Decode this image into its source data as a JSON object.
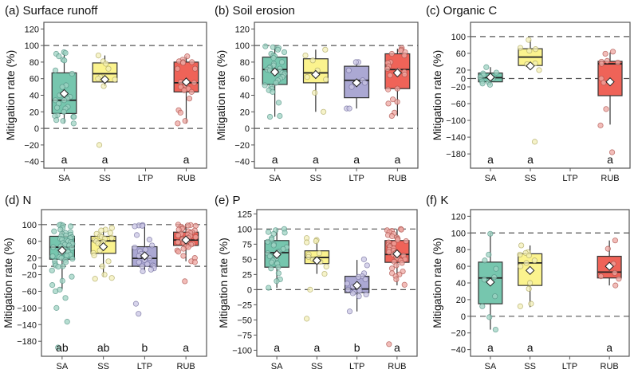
{
  "chart_data": [
    {
      "type": "box",
      "title": "(a) Surface runoff",
      "ylabel": "Mitigation rate (%)",
      "ylim": [
        -48,
        128
      ],
      "yticks": [
        120,
        100,
        80,
        60,
        40,
        20,
        0,
        -20,
        -40
      ],
      "reference_lines": [
        100,
        0
      ],
      "categories": [
        "SA",
        "SS",
        "LTP",
        "RUB"
      ],
      "groups": [
        {
          "name": "SA",
          "letter": "a",
          "q1": 18,
          "median": 34,
          "q3": 67,
          "whisker_low": 6,
          "whisker_high": 92,
          "mean": 42,
          "points": [
            92,
            91,
            90,
            87,
            83,
            82,
            70,
            66,
            52,
            50,
            40,
            38,
            36,
            34,
            34,
            30,
            26,
            25,
            24,
            20,
            16,
            15,
            14,
            14,
            10,
            9,
            6
          ]
        },
        {
          "name": "SS",
          "letter": "a",
          "q1": 56,
          "median": 66,
          "q3": 79,
          "whisker_low": 51,
          "whisker_high": 88,
          "mean": 59,
          "points": [
            88,
            81,
            78,
            72,
            62,
            60,
            59,
            51,
            -20
          ]
        },
        {
          "name": "LTP",
          "letter": "",
          "points": []
        },
        {
          "name": "RUB",
          "letter": "a",
          "q1": 44,
          "median": 55,
          "q3": 80,
          "whisker_low": 6,
          "whisker_high": 87,
          "mean": 56,
          "points": [
            87,
            83,
            81,
            80,
            80,
            79,
            72,
            72,
            56,
            55,
            52,
            50,
            48,
            46,
            44,
            36,
            22,
            19,
            9,
            6
          ]
        }
      ]
    },
    {
      "type": "box",
      "title": "(b) Soil erosion",
      "ylabel": "Mitigation rate (%)",
      "ylim": [
        -48,
        128
      ],
      "yticks": [
        120,
        100,
        80,
        60,
        40,
        20,
        0,
        -20,
        -40
      ],
      "reference_lines": [
        100,
        0
      ],
      "categories": [
        "SA",
        "SS",
        "LTP",
        "RUB"
      ],
      "groups": [
        {
          "name": "SA",
          "letter": "a",
          "q1": 53,
          "median": 71,
          "q3": 86,
          "whisker_low": 14,
          "whisker_high": 100,
          "mean": 68,
          "points": [
            99,
            98,
            97,
            95,
            92,
            90,
            88,
            87,
            85,
            80,
            78,
            76,
            74,
            73,
            72,
            71,
            70,
            68,
            67,
            66,
            64,
            62,
            60,
            58,
            55,
            52,
            50,
            48,
            46,
            44,
            31,
            15,
            14
          ]
        },
        {
          "name": "SS",
          "letter": "a",
          "q1": 55,
          "median": 67,
          "q3": 84,
          "whisker_low": 20,
          "whisker_high": 95,
          "mean": 65,
          "points": [
            95,
            88,
            82,
            70,
            65,
            62,
            59,
            43,
            20
          ]
        },
        {
          "name": "LTP",
          "letter": "a",
          "q1": 37,
          "median": 58,
          "q3": 75,
          "whisker_low": 24,
          "whisker_high": 80,
          "mean": 55,
          "points": [
            80,
            80,
            70,
            58,
            55,
            50,
            24,
            24
          ]
        },
        {
          "name": "RUB",
          "letter": "a",
          "q1": 48,
          "median": 71,
          "q3": 90,
          "whisker_low": 15,
          "whisker_high": 96,
          "mean": 67,
          "points": [
            97,
            95,
            94,
            92,
            90,
            88,
            80,
            79,
            75,
            72,
            70,
            68,
            65,
            64,
            48,
            47,
            35,
            32,
            30,
            19,
            15
          ]
        }
      ]
    },
    {
      "type": "box",
      "title": "(c) Organic C",
      "ylabel": "Mitigation rate (%)",
      "ylim": [
        -214,
        134
      ],
      "yticks": [
        100,
        60,
        20,
        0,
        -20,
        -60,
        -100,
        -140,
        -180
      ],
      "reference_lines": [
        100,
        0
      ],
      "categories": [
        "SA",
        "SS",
        "LTP",
        "RUB"
      ],
      "groups": [
        {
          "name": "SA",
          "letter": "a",
          "q1": -8,
          "median": 2,
          "q3": 13,
          "whisker_low": -15,
          "whisker_high": 27,
          "mean": 3,
          "points": [
            27,
            14,
            12,
            8,
            3,
            0,
            -7,
            -9,
            -12,
            -15
          ]
        },
        {
          "name": "SS",
          "letter": "a",
          "q1": 31,
          "median": 51,
          "q3": 71,
          "whisker_low": 20,
          "whisker_high": 92,
          "mean": 30,
          "points": [
            92,
            73,
            70,
            66,
            36,
            34,
            20,
            -151
          ]
        },
        {
          "name": "LTP",
          "letter": "",
          "points": []
        },
        {
          "name": "RUB",
          "letter": "a",
          "q1": -41,
          "median": 35,
          "q3": 41,
          "whisker_low": -110,
          "whisker_high": 62,
          "mean": -8,
          "points": [
            64,
            59,
            42,
            40,
            38,
            35,
            0,
            -10,
            -73,
            -112,
            -176
          ]
        }
      ]
    },
    {
      "type": "box",
      "title": "(d) N",
      "ylabel": "Mitigation rate (%)",
      "ylim": [
        -216,
        136
      ],
      "yticks": [
        100,
        60,
        20,
        0,
        -20,
        -60,
        -100,
        -140,
        -180
      ],
      "reference_lines": [
        100,
        0
      ],
      "categories": [
        "SA",
        "SS",
        "LTP",
        "RUB"
      ],
      "groups": [
        {
          "name": "SA",
          "letter": "ab",
          "q1": 17,
          "median": 46,
          "q3": 72,
          "whisker_low": -55,
          "whisker_high": 100,
          "mean": 38,
          "points": [
            100,
            99,
            98,
            96,
            92,
            88,
            84,
            82,
            80,
            78,
            76,
            74,
            72,
            70,
            68,
            66,
            64,
            62,
            60,
            58,
            56,
            54,
            52,
            50,
            48,
            46,
            44,
            42,
            40,
            38,
            36,
            34,
            32,
            30,
            28,
            26,
            24,
            22,
            20,
            18,
            15,
            12,
            10,
            6,
            2,
            0,
            -1,
            -10,
            -25,
            -35,
            -45,
            -56,
            -60,
            -76,
            -100,
            -133,
            -195
          ]
        },
        {
          "name": "SS",
          "letter": "ab",
          "q1": 31,
          "median": 61,
          "q3": 72,
          "whisker_low": -25,
          "whisker_high": 92,
          "mean": 47,
          "points": [
            92,
            88,
            86,
            80,
            78,
            72,
            70,
            68,
            66,
            62,
            60,
            58,
            55,
            50,
            46,
            38,
            32,
            26,
            12,
            0,
            -20,
            -28,
            -30
          ]
        },
        {
          "name": "LTP",
          "letter": "b",
          "q1": 0,
          "median": 19,
          "q3": 47,
          "whisker_low": -10,
          "whisker_high": 100,
          "mean": 25,
          "points": [
            99,
            98,
            97,
            96,
            75,
            64,
            50,
            45,
            40,
            36,
            30,
            25,
            20,
            15,
            10,
            5,
            2,
            0,
            0,
            -5,
            -8,
            -12,
            -90,
            -114
          ]
        },
        {
          "name": "RUB",
          "letter": "a",
          "q1": 50,
          "median": 63,
          "q3": 82,
          "whisker_low": 12,
          "whisker_high": 100,
          "mean": 63,
          "points": [
            100,
            99,
            98,
            97,
            95,
            92,
            90,
            88,
            86,
            84,
            82,
            80,
            78,
            76,
            74,
            72,
            70,
            68,
            66,
            64,
            62,
            60,
            58,
            56,
            54,
            52,
            50,
            48,
            46,
            42,
            38,
            35,
            25,
            20,
            12,
            10,
            -36
          ]
        }
      ]
    },
    {
      "type": "box",
      "title": "(e) P",
      "ylabel": "Mitigation rate (%)",
      "ylim": [
        -110,
        132
      ],
      "yticks": [
        125,
        100,
        75,
        50,
        25,
        0,
        -25,
        -50,
        -75,
        -100
      ],
      "reference_lines": [
        100,
        0
      ],
      "categories": [
        "SA",
        "SS",
        "LTP",
        "RUB"
      ],
      "groups": [
        {
          "name": "SA",
          "letter": "a",
          "q1": 37,
          "median": 61,
          "q3": 81,
          "whisker_low": 3,
          "whisker_high": 100,
          "mean": 58,
          "points": [
            100,
            98,
            95,
            94,
            92,
            85,
            83,
            79,
            75,
            73,
            70,
            67,
            63,
            62,
            60,
            57,
            55,
            52,
            48,
            45,
            43,
            37,
            35,
            27,
            17,
            14,
            3
          ]
        },
        {
          "name": "SS",
          "letter": "a",
          "q1": 43,
          "median": 53,
          "q3": 64,
          "whisker_low": 26,
          "whisker_high": 85,
          "mean": 48,
          "points": [
            85,
            82,
            80,
            78,
            60,
            58,
            54,
            50,
            48,
            46,
            38,
            26,
            0,
            -48
          ]
        },
        {
          "name": "LTP",
          "letter": "b",
          "q1": -5,
          "median": 1,
          "q3": 22,
          "whisker_low": -36,
          "whisker_high": 49,
          "mean": 7,
          "points": [
            50,
            40,
            27,
            22,
            21,
            17,
            10,
            5,
            2,
            0,
            -2,
            -4,
            -6,
            -8,
            -11,
            -36
          ]
        },
        {
          "name": "RUB",
          "letter": "a",
          "q1": 45,
          "median": 58,
          "q3": 81,
          "whisker_low": 7,
          "whisker_high": 100,
          "mean": 59,
          "points": [
            100,
            99,
            98,
            97,
            95,
            92,
            90,
            88,
            86,
            84,
            82,
            80,
            78,
            76,
            74,
            72,
            70,
            68,
            66,
            64,
            62,
            60,
            58,
            56,
            54,
            52,
            50,
            48,
            46,
            44,
            40,
            35,
            30,
            27,
            25,
            22,
            17,
            8,
            -90
          ]
        }
      ]
    },
    {
      "type": "box",
      "title": "(f) K",
      "ylabel": "Mitigation rate (%)",
      "ylim": [
        -48,
        128
      ],
      "yticks": [
        120,
        100,
        80,
        60,
        40,
        20,
        0,
        -20,
        -40
      ],
      "reference_lines": [
        100,
        0
      ],
      "categories": [
        "SA",
        "SS",
        "LTP",
        "RUB"
      ],
      "groups": [
        {
          "name": "SA",
          "letter": "a",
          "q1": 15,
          "median": 46,
          "q3": 65,
          "whisker_low": -16,
          "whisker_high": 99,
          "mean": 41,
          "points": [
            99,
            74,
            67,
            57,
            47,
            44,
            24,
            12,
            -1,
            -16
          ]
        },
        {
          "name": "SS",
          "letter": "a",
          "q1": 37,
          "median": 64,
          "q3": 75,
          "whisker_low": 11,
          "whisker_high": 85,
          "mean": 55,
          "points": [
            85,
            77,
            76,
            74,
            73,
            67,
            64,
            60,
            40,
            33,
            15,
            12
          ]
        },
        {
          "name": "LTP",
          "letter": "",
          "points": []
        },
        {
          "name": "RUB",
          "letter": "a",
          "q1": 46,
          "median": 53,
          "q3": 72,
          "whisker_low": 37,
          "whisker_high": 91,
          "mean": 60,
          "points": [
            91,
            81,
            63,
            52,
            48,
            45,
            37
          ]
        }
      ]
    }
  ],
  "colors": {
    "SA": {
      "fill": "#76c6ae",
      "point": "#9fd3c3",
      "stroke": "#4f8f80"
    },
    "SS": {
      "fill": "#fbf38e",
      "point": "#f3efb8",
      "stroke": "#a8a25a"
    },
    "LTP": {
      "fill": "#aba8d3",
      "point": "#c9c6e4",
      "stroke": "#6e6a99"
    },
    "RUB": {
      "fill": "#ef6358",
      "point": "#eea7a1",
      "stroke": "#a84a44"
    }
  }
}
